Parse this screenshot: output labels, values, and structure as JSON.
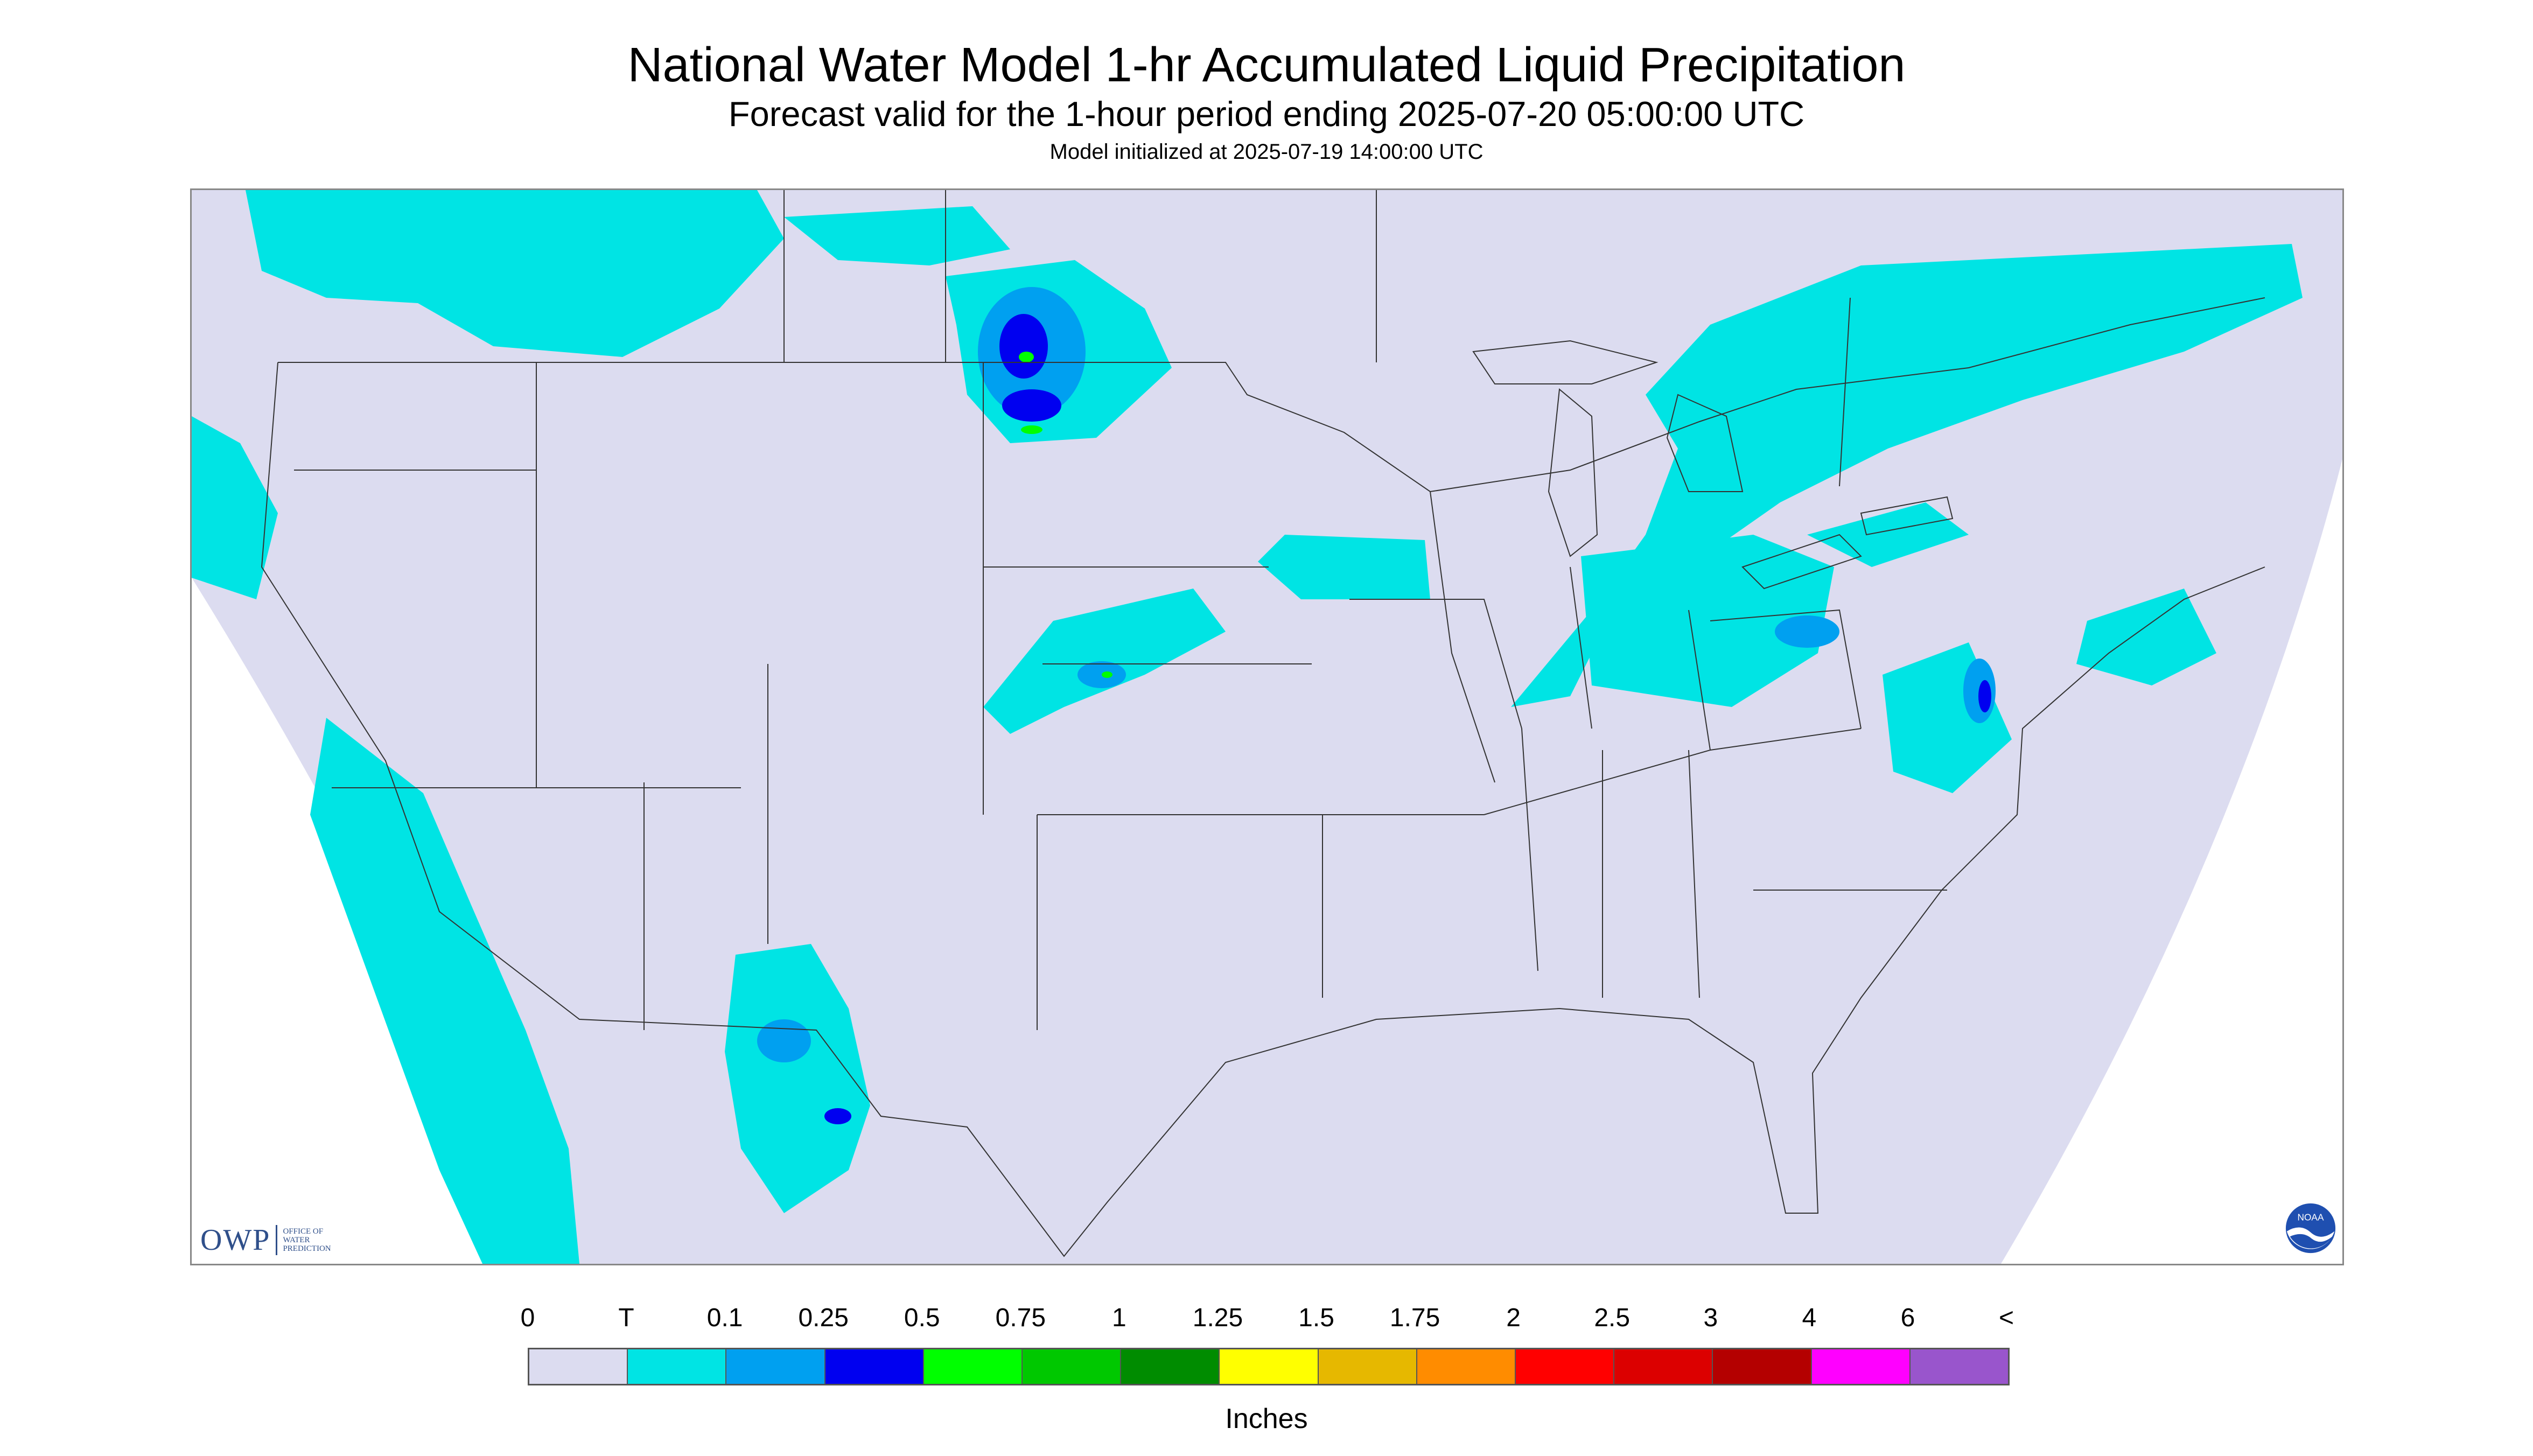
{
  "titles": {
    "main": "National Water Model 1-hr Accumulated Liquid Precipitation",
    "valid": "Forecast valid for the 1-hour period ending 2025-07-20 05:00:00 UTC",
    "init": "Model initialized at 2025-07-19 14:00:00 UTC"
  },
  "logos": {
    "owp_letters": "OWP",
    "owp_sub": [
      "OFFICE OF",
      "WATER",
      "PREDICTION"
    ],
    "noaa": "NOAA"
  },
  "legend": {
    "labels": [
      "0",
      "T",
      "0.1",
      "0.25",
      "0.5",
      "0.75",
      "1",
      "1.25",
      "1.5",
      "1.75",
      "2",
      "2.5",
      "3",
      "4",
      "6",
      "<"
    ],
    "colors": [
      "#dcdcf0",
      "#00e4e4",
      "#00a0f0",
      "#0000f0",
      "#00ff00",
      "#00c800",
      "#008c00",
      "#ffff00",
      "#e6b800",
      "#ff8c00",
      "#ff0000",
      "#dc0000",
      "#b40000",
      "#ff00ff",
      "#9955cc"
    ],
    "units": "Inches"
  },
  "colors": {
    "land": "#dcdcf0",
    "trace": "#00e4e4",
    "light": "#00a0f0",
    "moderate": "#0000f0",
    "heavy": "#00ff00",
    "border": "#333333"
  }
}
